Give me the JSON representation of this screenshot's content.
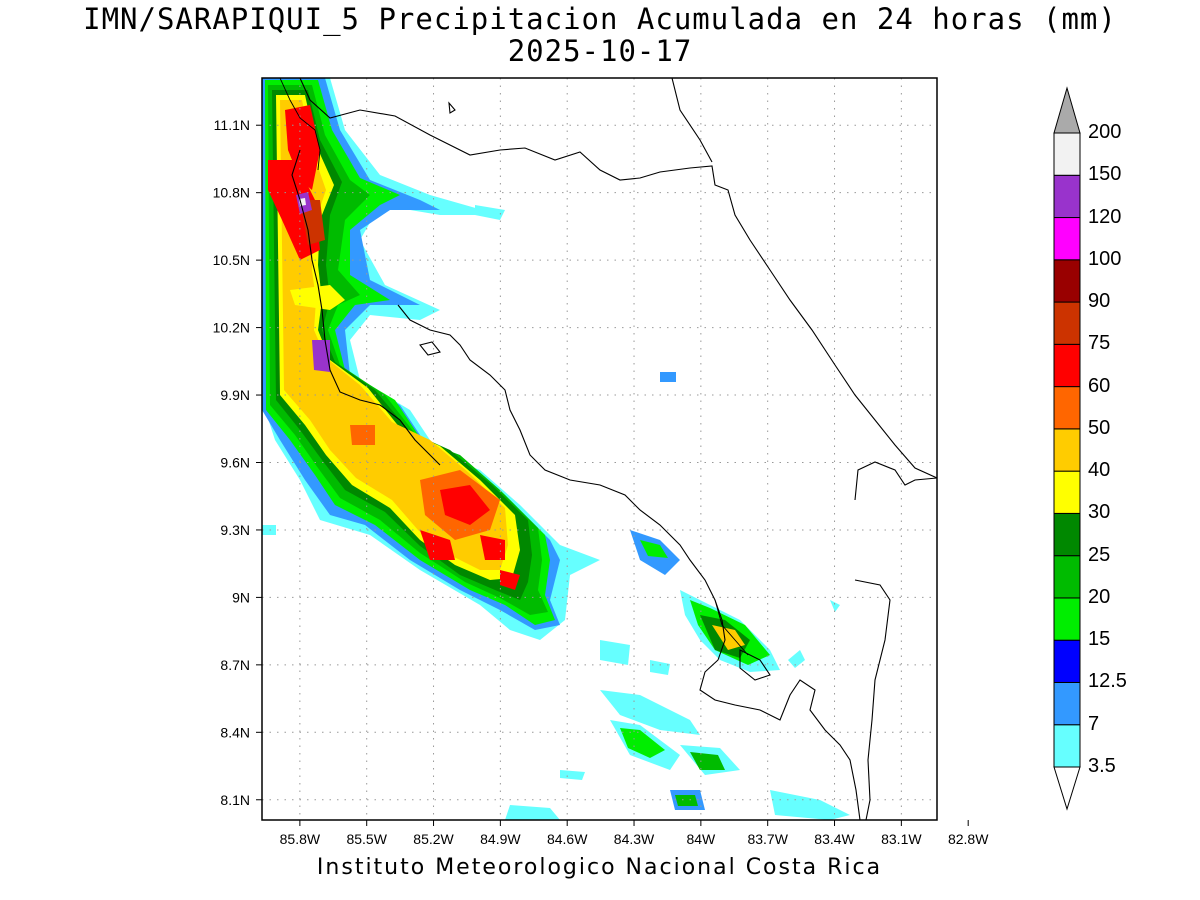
{
  "title": {
    "line1": "IMN/SARAPIQUI_5 Precipitacion Acumulada en 24 horas (mm)",
    "line2": "2025-10-17"
  },
  "footer": "Instituto Meteorologico Nacional Costa Rica",
  "axes": {
    "x_ticks": [
      "85.8W",
      "85.5W",
      "85.2W",
      "84.9W",
      "84.6W",
      "84.3W",
      "84W",
      "83.7W",
      "83.4W",
      "83.1W",
      "82.8W"
    ],
    "y_ticks": [
      "11.1N",
      "10.8N",
      "10.5N",
      "10.2N",
      "9.9N",
      "9.6N",
      "9.3N",
      "9N",
      "8.7N",
      "8.4N",
      "8.1N"
    ],
    "lon_range": [
      -85.97,
      -82.94
    ],
    "lat_range": [
      8.01,
      11.31
    ],
    "grid": true
  },
  "colorbar": {
    "levels": [
      "3.5",
      "7",
      "12.5",
      "15",
      "20",
      "25",
      "30",
      "40",
      "50",
      "60",
      "75",
      "90",
      "100",
      "120",
      "150",
      "200"
    ],
    "colors": [
      "#66ffff",
      "#3399ff",
      "#0000ff",
      "#00ee00",
      "#00bb00",
      "#008800",
      "#ffff00",
      "#ffcc00",
      "#ff6600",
      "#ff0000",
      "#cc3300",
      "#990000",
      "#ff00ff",
      "#9933cc",
      "#f2f2f2",
      "#aaaaaa"
    ]
  }
}
